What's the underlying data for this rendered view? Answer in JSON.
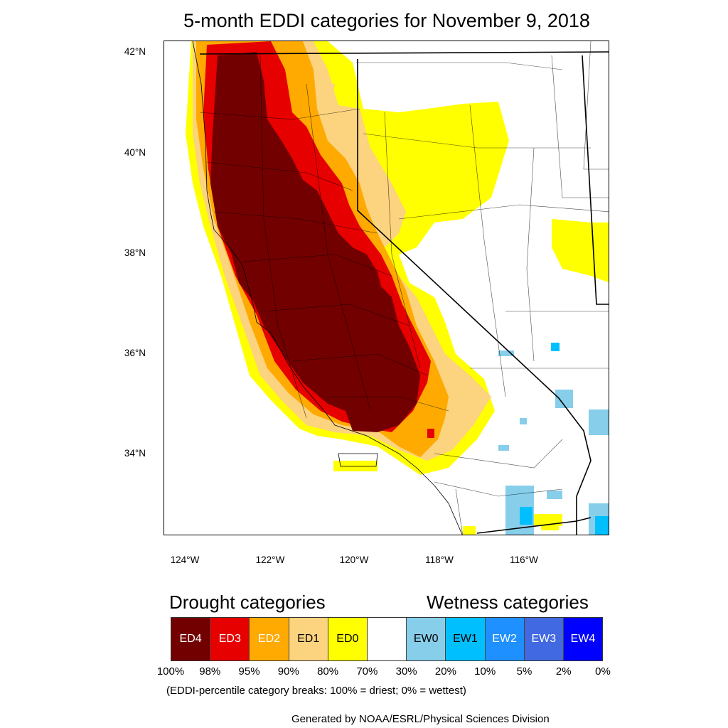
{
  "title": "5-month EDDI categories for November 9, 2018",
  "map": {
    "lat_labels": [
      "42°N",
      "40°N",
      "38°N",
      "36°N",
      "34°N"
    ],
    "lon_labels": [
      "124°W",
      "122°W",
      "120°W",
      "118°W",
      "116°W"
    ]
  },
  "legend": {
    "drought_heading": "Drought categories",
    "wetness_heading": "Wetness categories",
    "categories": [
      {
        "label": "ED4",
        "color": "#730000",
        "text_color": "#ffffff"
      },
      {
        "label": "ED3",
        "color": "#e60000",
        "text_color": "#ffffff"
      },
      {
        "label": "ED2",
        "color": "#ffaa00",
        "text_color": "#ffffff"
      },
      {
        "label": "ED1",
        "color": "#fcd37f",
        "text_color": "#000000"
      },
      {
        "label": "ED0",
        "color": "#ffff00",
        "text_color": "#000000"
      },
      {
        "label": "",
        "color": "#ffffff",
        "text_color": "#000000"
      },
      {
        "label": "EW0",
        "color": "#87ceeb",
        "text_color": "#000000"
      },
      {
        "label": "EW1",
        "color": "#00bfff",
        "text_color": "#000000"
      },
      {
        "label": "EW2",
        "color": "#1e90ff",
        "text_color": "#ffffff"
      },
      {
        "label": "EW3",
        "color": "#4169e1",
        "text_color": "#ffffff"
      },
      {
        "label": "EW4",
        "color": "#0000ff",
        "text_color": "#ffffff"
      }
    ],
    "breaks": [
      "100%",
      "98%",
      "95%",
      "90%",
      "80%",
      "70%",
      "30%",
      "20%",
      "10%",
      "5%",
      "2%",
      "0%"
    ],
    "note": "(EDDI-percentile category breaks: 100% = driest; 0% = wettest)"
  },
  "credit": "Generated by NOAA/ESRL/Physical Sciences Division"
}
